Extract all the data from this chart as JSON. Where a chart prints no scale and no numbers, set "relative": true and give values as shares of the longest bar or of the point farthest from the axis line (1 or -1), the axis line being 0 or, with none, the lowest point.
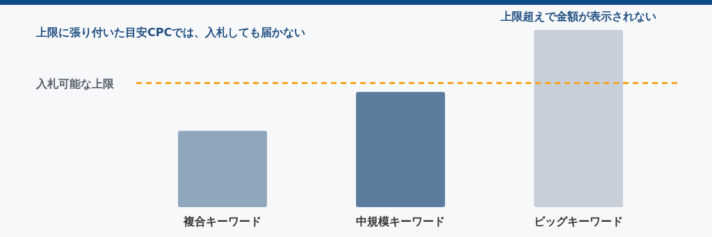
{
  "chart_data": {
    "type": "bar",
    "title": "上限に張り付いた目安CPCでは、入札しても届かない",
    "categories": [
      "複合キーワード",
      "中規模キーワード",
      "ビッグキーワード"
    ],
    "values": [
      0.43,
      0.65,
      1
    ],
    "colors": [
      "#8fa6bb",
      "#5b7c9d",
      "#c8cfd8"
    ],
    "relative": true,
    "ref_lines": [
      {
        "axis": "y",
        "value": 0.7,
        "label": "入札可能な上限",
        "color": "#f5a623",
        "line_style": "dashed"
      }
    ],
    "annotations": [
      {
        "text": "上限超えで金額が表示されない",
        "x": "ビッグキーワード",
        "y": 1
      }
    ]
  }
}
